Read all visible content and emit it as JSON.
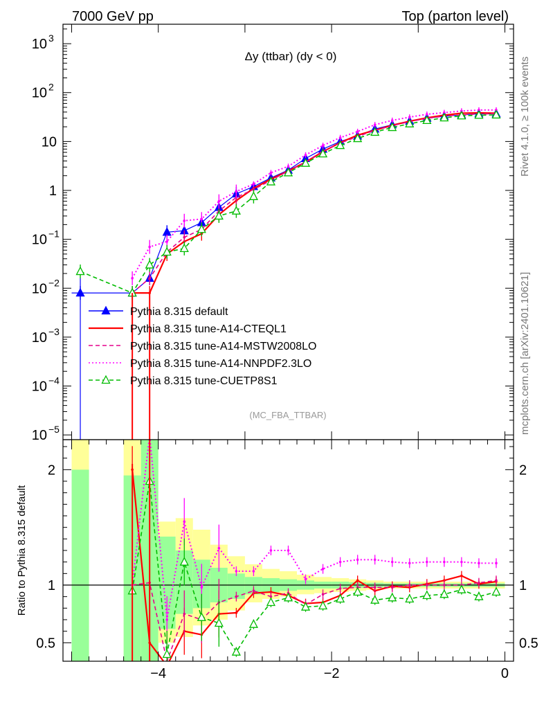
{
  "header": {
    "left": "7000 GeV pp",
    "right": "Top (parton level)"
  },
  "side_labels": {
    "rivet": "Rivet 4.1.0, ≥ 100k events",
    "mcplots": "mcplots.cern.ch [arXiv:2401.10621]"
  },
  "colors": {
    "default": "#0000ff",
    "a14": "#ff0000",
    "mstw": "#e6008c",
    "nnpdf": "#ff00ff",
    "cuetp": "#00bb00",
    "band_green": "#99ff99",
    "band_yellow": "#ffff99"
  },
  "chart_data": [
    {
      "type": "line",
      "title": "Δy (ttbar) (dy < 0)",
      "watermark": "(MC_FBA_TTBAR)",
      "yscale": "log",
      "xlim": [
        -5.1,
        0.1
      ],
      "ylim": [
        8e-06,
        2500
      ],
      "yticks": [
        {
          "value": 1000,
          "mant": "10",
          "exp": "3"
        },
        {
          "value": 100,
          "mant": "10",
          "exp": "2"
        },
        {
          "value": 10,
          "mant": "10",
          "exp": ""
        },
        {
          "value": 1,
          "mant": "1",
          "exp": ""
        },
        {
          "value": 0.1,
          "mant": "10",
          "exp": "−1"
        },
        {
          "value": 0.01,
          "mant": "10",
          "exp": "−2"
        },
        {
          "value": 0.001,
          "mant": "10",
          "exp": "−3"
        },
        {
          "value": 0.0001,
          "mant": "10",
          "exp": "−4"
        },
        {
          "value": 1e-05,
          "mant": "10",
          "exp": "−5"
        }
      ],
      "x": [
        -4.9,
        -4.3,
        -4.1,
        -3.9,
        -3.7,
        -3.5,
        -3.3,
        -3.1,
        -2.9,
        -2.7,
        -2.5,
        -2.3,
        -2.1,
        -1.9,
        -1.7,
        -1.5,
        -1.3,
        -1.1,
        -0.9,
        -0.7,
        -0.5,
        -0.3,
        -0.1
      ],
      "series": [
        {
          "name": "Pythia 8.315 default",
          "key": "default",
          "style": "solid",
          "marker": "triangle-filled",
          "values": [
            0.008,
            0.008,
            0.016,
            0.14,
            0.15,
            0.22,
            0.45,
            0.85,
            1.2,
            1.8,
            2.6,
            4.5,
            7,
            10,
            13,
            18,
            22,
            26,
            30,
            33,
            35,
            37,
            37
          ]
        },
        {
          "name": "Pythia 8.315 tune-A14-CTEQL1",
          "key": "a14",
          "style": "solid",
          "marker": "none",
          "values": [
            null,
            0.008,
            0.008,
            0.05,
            0.09,
            0.13,
            0.32,
            0.62,
            1.1,
            1.7,
            2.5,
            3.8,
            6.2,
            9.5,
            13.5,
            17,
            21.5,
            26,
            30.5,
            34.5,
            38,
            38.5,
            38
          ]
        },
        {
          "name": "Pythia 8.315 tune-A14-MSTW2008LO",
          "key": "mstw",
          "style": "dashed",
          "marker": "none",
          "values": [
            null,
            0.008,
            0.016,
            0.055,
            0.11,
            0.16,
            0.38,
            0.72,
            1.05,
            1.6,
            2.5,
            3.8,
            6.4,
            9.3,
            12.6,
            17,
            21,
            25.5,
            29.7,
            33,
            35,
            36.5,
            37
          ]
        },
        {
          "name": "Pythia 8.315 tune-A14-NNPDF2.3LO",
          "key": "nnpdf",
          "style": "dotted",
          "marker": "none",
          "values": [
            null,
            0.016,
            0.07,
            0.09,
            0.24,
            0.26,
            0.6,
            0.95,
            1.35,
            2.3,
            3.1,
            5.3,
            8.3,
            12,
            16,
            22,
            27,
            31.5,
            36,
            39,
            42,
            44,
            44
          ]
        },
        {
          "name": "Pythia 8.315 tune-CUETP8S1",
          "key": "cuetp",
          "style": "dashed",
          "marker": "triangle-open",
          "values": [
            0.022,
            0.008,
            0.03,
            0.055,
            0.065,
            0.16,
            0.3,
            0.38,
            0.75,
            1.5,
            2.3,
            3.6,
            5.6,
            8.3,
            11.5,
            15.5,
            19.4,
            23,
            27,
            30.5,
            33.5,
            34.5,
            35
          ]
        }
      ]
    },
    {
      "type": "line",
      "ylabel": "Ratio to Pythia 8.315 default",
      "xlim": [
        -5.1,
        0.1
      ],
      "ylim": [
        0.34,
        2.26
      ],
      "xticks": [
        -4,
        -2,
        0
      ],
      "xtick_labels": [
        "−4",
        "−2",
        "0"
      ],
      "yticks": [
        0.5,
        1,
        2
      ],
      "ytick_labels": [
        "0.5",
        "1",
        "2"
      ],
      "x": [
        -4.9,
        -4.3,
        -4.1,
        -3.9,
        -3.7,
        -3.5,
        -3.3,
        -3.1,
        -2.9,
        -2.7,
        -2.5,
        -2.3,
        -2.1,
        -1.9,
        -1.7,
        -1.5,
        -1.3,
        -1.1,
        -0.9,
        -0.7,
        -0.5,
        -0.3,
        -0.1
      ],
      "bands": [
        {
          "x0": -5.0,
          "x1": -4.8,
          "yellow": [
            0.34,
            2.26
          ],
          "green": [
            0.34,
            2.0
          ]
        },
        {
          "x0": -4.4,
          "x1": -4.2,
          "yellow": [
            0.34,
            2.26
          ],
          "green": [
            0.34,
            1.95
          ]
        },
        {
          "x0": -4.2,
          "x1": -4.0,
          "yellow": [
            0.34,
            2.26
          ],
          "green": [
            0.34,
            2.26
          ]
        },
        {
          "x0": -4.0,
          "x1": -3.8,
          "yellow": [
            0.5,
            1.55
          ],
          "green": [
            0.62,
            1.42
          ]
        },
        {
          "x0": -3.8,
          "x1": -3.6,
          "yellow": [
            0.55,
            1.58
          ],
          "green": [
            0.75,
            1.3
          ]
        },
        {
          "x0": -3.6,
          "x1": -3.4,
          "yellow": [
            0.65,
            1.48
          ],
          "green": [
            0.8,
            1.22
          ]
        },
        {
          "x0": -3.4,
          "x1": -3.2,
          "yellow": [
            0.7,
            1.35
          ],
          "green": [
            0.85,
            1.15
          ]
        },
        {
          "x0": -3.2,
          "x1": -3.0,
          "yellow": [
            0.78,
            1.25
          ],
          "green": [
            0.88,
            1.1
          ]
        },
        {
          "x0": -3.0,
          "x1": -2.8,
          "yellow": [
            0.85,
            1.18
          ],
          "green": [
            0.92,
            1.07
          ]
        },
        {
          "x0": -2.8,
          "x1": -2.6,
          "yellow": [
            0.88,
            1.14
          ],
          "green": [
            0.94,
            1.06
          ]
        },
        {
          "x0": -2.6,
          "x1": -2.4,
          "yellow": [
            0.9,
            1.12
          ],
          "green": [
            0.95,
            1.05
          ]
        },
        {
          "x0": -2.4,
          "x1": -2.2,
          "yellow": [
            0.92,
            1.09
          ],
          "green": [
            0.96,
            1.04
          ]
        },
        {
          "x0": -2.2,
          "x1": -2.0,
          "yellow": [
            0.93,
            1.07
          ],
          "green": [
            0.97,
            1.03
          ]
        },
        {
          "x0": -2.0,
          "x1": -1.8,
          "yellow": [
            0.94,
            1.06
          ],
          "green": [
            0.97,
            1.03
          ]
        },
        {
          "x0": -1.8,
          "x1": -1.6,
          "yellow": [
            0.95,
            1.05
          ],
          "green": [
            0.975,
            1.025
          ]
        },
        {
          "x0": -1.6,
          "x1": -1.4,
          "yellow": [
            0.96,
            1.04
          ],
          "green": [
            0.98,
            1.02
          ]
        },
        {
          "x0": -1.4,
          "x1": -0.0,
          "yellow": [
            0.97,
            1.03
          ],
          "green": [
            0.985,
            1.015
          ]
        }
      ],
      "series": [
        {
          "key": "default",
          "values": [
            1,
            1,
            1,
            1,
            1,
            1,
            1,
            1,
            1,
            1,
            1,
            1,
            1,
            1,
            1,
            1,
            1,
            1,
            1,
            1,
            1,
            1,
            1
          ]
        },
        {
          "key": "a14",
          "values": [
            null,
            2.0,
            0.5,
            0.3,
            0.6,
            0.57,
            0.75,
            0.76,
            0.93,
            0.94,
            0.91,
            0.84,
            0.85,
            0.91,
            1.04,
            0.95,
            0.99,
            0.98,
            1.01,
            1.04,
            1.08,
            1.01,
            1.03
          ]
        },
        {
          "key": "mstw",
          "values": [
            null,
            1.0,
            1.02,
            0.34,
            0.75,
            0.7,
            0.85,
            0.9,
            0.95,
            0.9,
            0.93,
            0.83,
            0.92,
            0.97,
            0.98,
            0.98,
            0.98,
            1.0,
            1.0,
            1.0,
            1.0,
            1.02,
            1.04
          ]
        },
        {
          "key": "nnpdf",
          "values": [
            null,
            1.0,
            2.3,
            0.7,
            1.55,
            0.98,
            1.32,
            1.12,
            1.12,
            1.3,
            1.3,
            1.05,
            1.14,
            1.2,
            1.22,
            1.22,
            1.2,
            1.19,
            1.2,
            1.2,
            1.2,
            1.19,
            1.19
          ]
        },
        {
          "key": "cuetp",
          "values": [
            null,
            0.95,
            1.9,
            0.4,
            1.2,
            0.72,
            0.67,
            0.42,
            0.66,
            0.85,
            0.89,
            0.81,
            0.82,
            0.88,
            0.94,
            0.87,
            0.89,
            0.88,
            0.91,
            0.92,
            0.96,
            0.9,
            0.94
          ]
        }
      ]
    }
  ]
}
